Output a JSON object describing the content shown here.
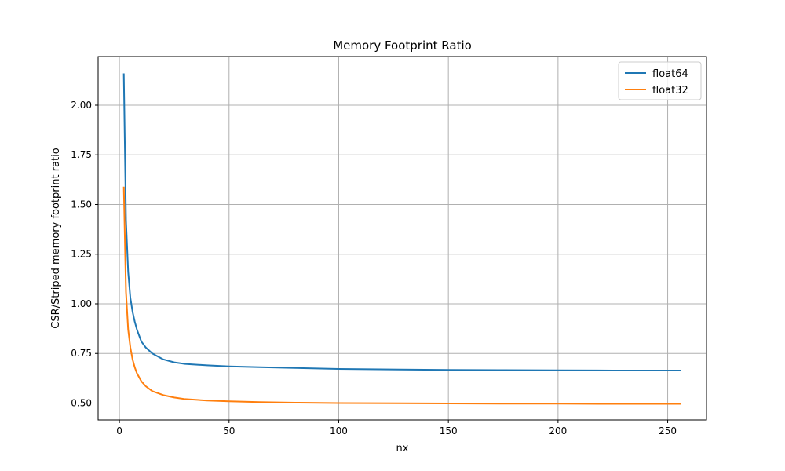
{
  "chart_data": {
    "type": "line",
    "title": "Memory Footprint Ratio",
    "xlabel": "nx",
    "ylabel": "CSR/Striped memory footprint ratio",
    "xlim": [
      -9.7,
      267.7
    ],
    "ylim": [
      0.415,
      2.245
    ],
    "xticks": [
      0,
      50,
      100,
      150,
      200,
      250
    ],
    "yticks": [
      0.5,
      0.75,
      1.0,
      1.25,
      1.5,
      1.75,
      2.0
    ],
    "ytick_labels": [
      "0.50",
      "0.75",
      "1.00",
      "1.25",
      "1.50",
      "1.75",
      "2.00"
    ],
    "grid": true,
    "legend_position": "top-right",
    "series": [
      {
        "name": "float64",
        "color": "#1f77b4",
        "x": [
          2,
          3,
          4,
          5,
          6,
          7,
          8,
          10,
          12,
          15,
          20,
          25,
          30,
          40,
          50,
          64,
          80,
          100,
          128,
          150,
          175,
          200,
          225,
          256
        ],
        "y": [
          2.16,
          1.42,
          1.16,
          1.03,
          0.96,
          0.91,
          0.87,
          0.81,
          0.78,
          0.75,
          0.72,
          0.705,
          0.697,
          0.69,
          0.685,
          0.681,
          0.677,
          0.672,
          0.669,
          0.667,
          0.666,
          0.665,
          0.664,
          0.664
        ]
      },
      {
        "name": "float32",
        "color": "#ff7f0e",
        "x": [
          2,
          3,
          4,
          5,
          6,
          7,
          8,
          10,
          12,
          15,
          20,
          25,
          30,
          40,
          50,
          64,
          80,
          100,
          128,
          150,
          175,
          200,
          225,
          256
        ],
        "y": [
          1.59,
          1.06,
          0.87,
          0.78,
          0.72,
          0.68,
          0.65,
          0.61,
          0.585,
          0.56,
          0.54,
          0.528,
          0.52,
          0.513,
          0.509,
          0.505,
          0.502,
          0.5,
          0.499,
          0.498,
          0.497,
          0.497,
          0.496,
          0.496
        ]
      }
    ]
  }
}
